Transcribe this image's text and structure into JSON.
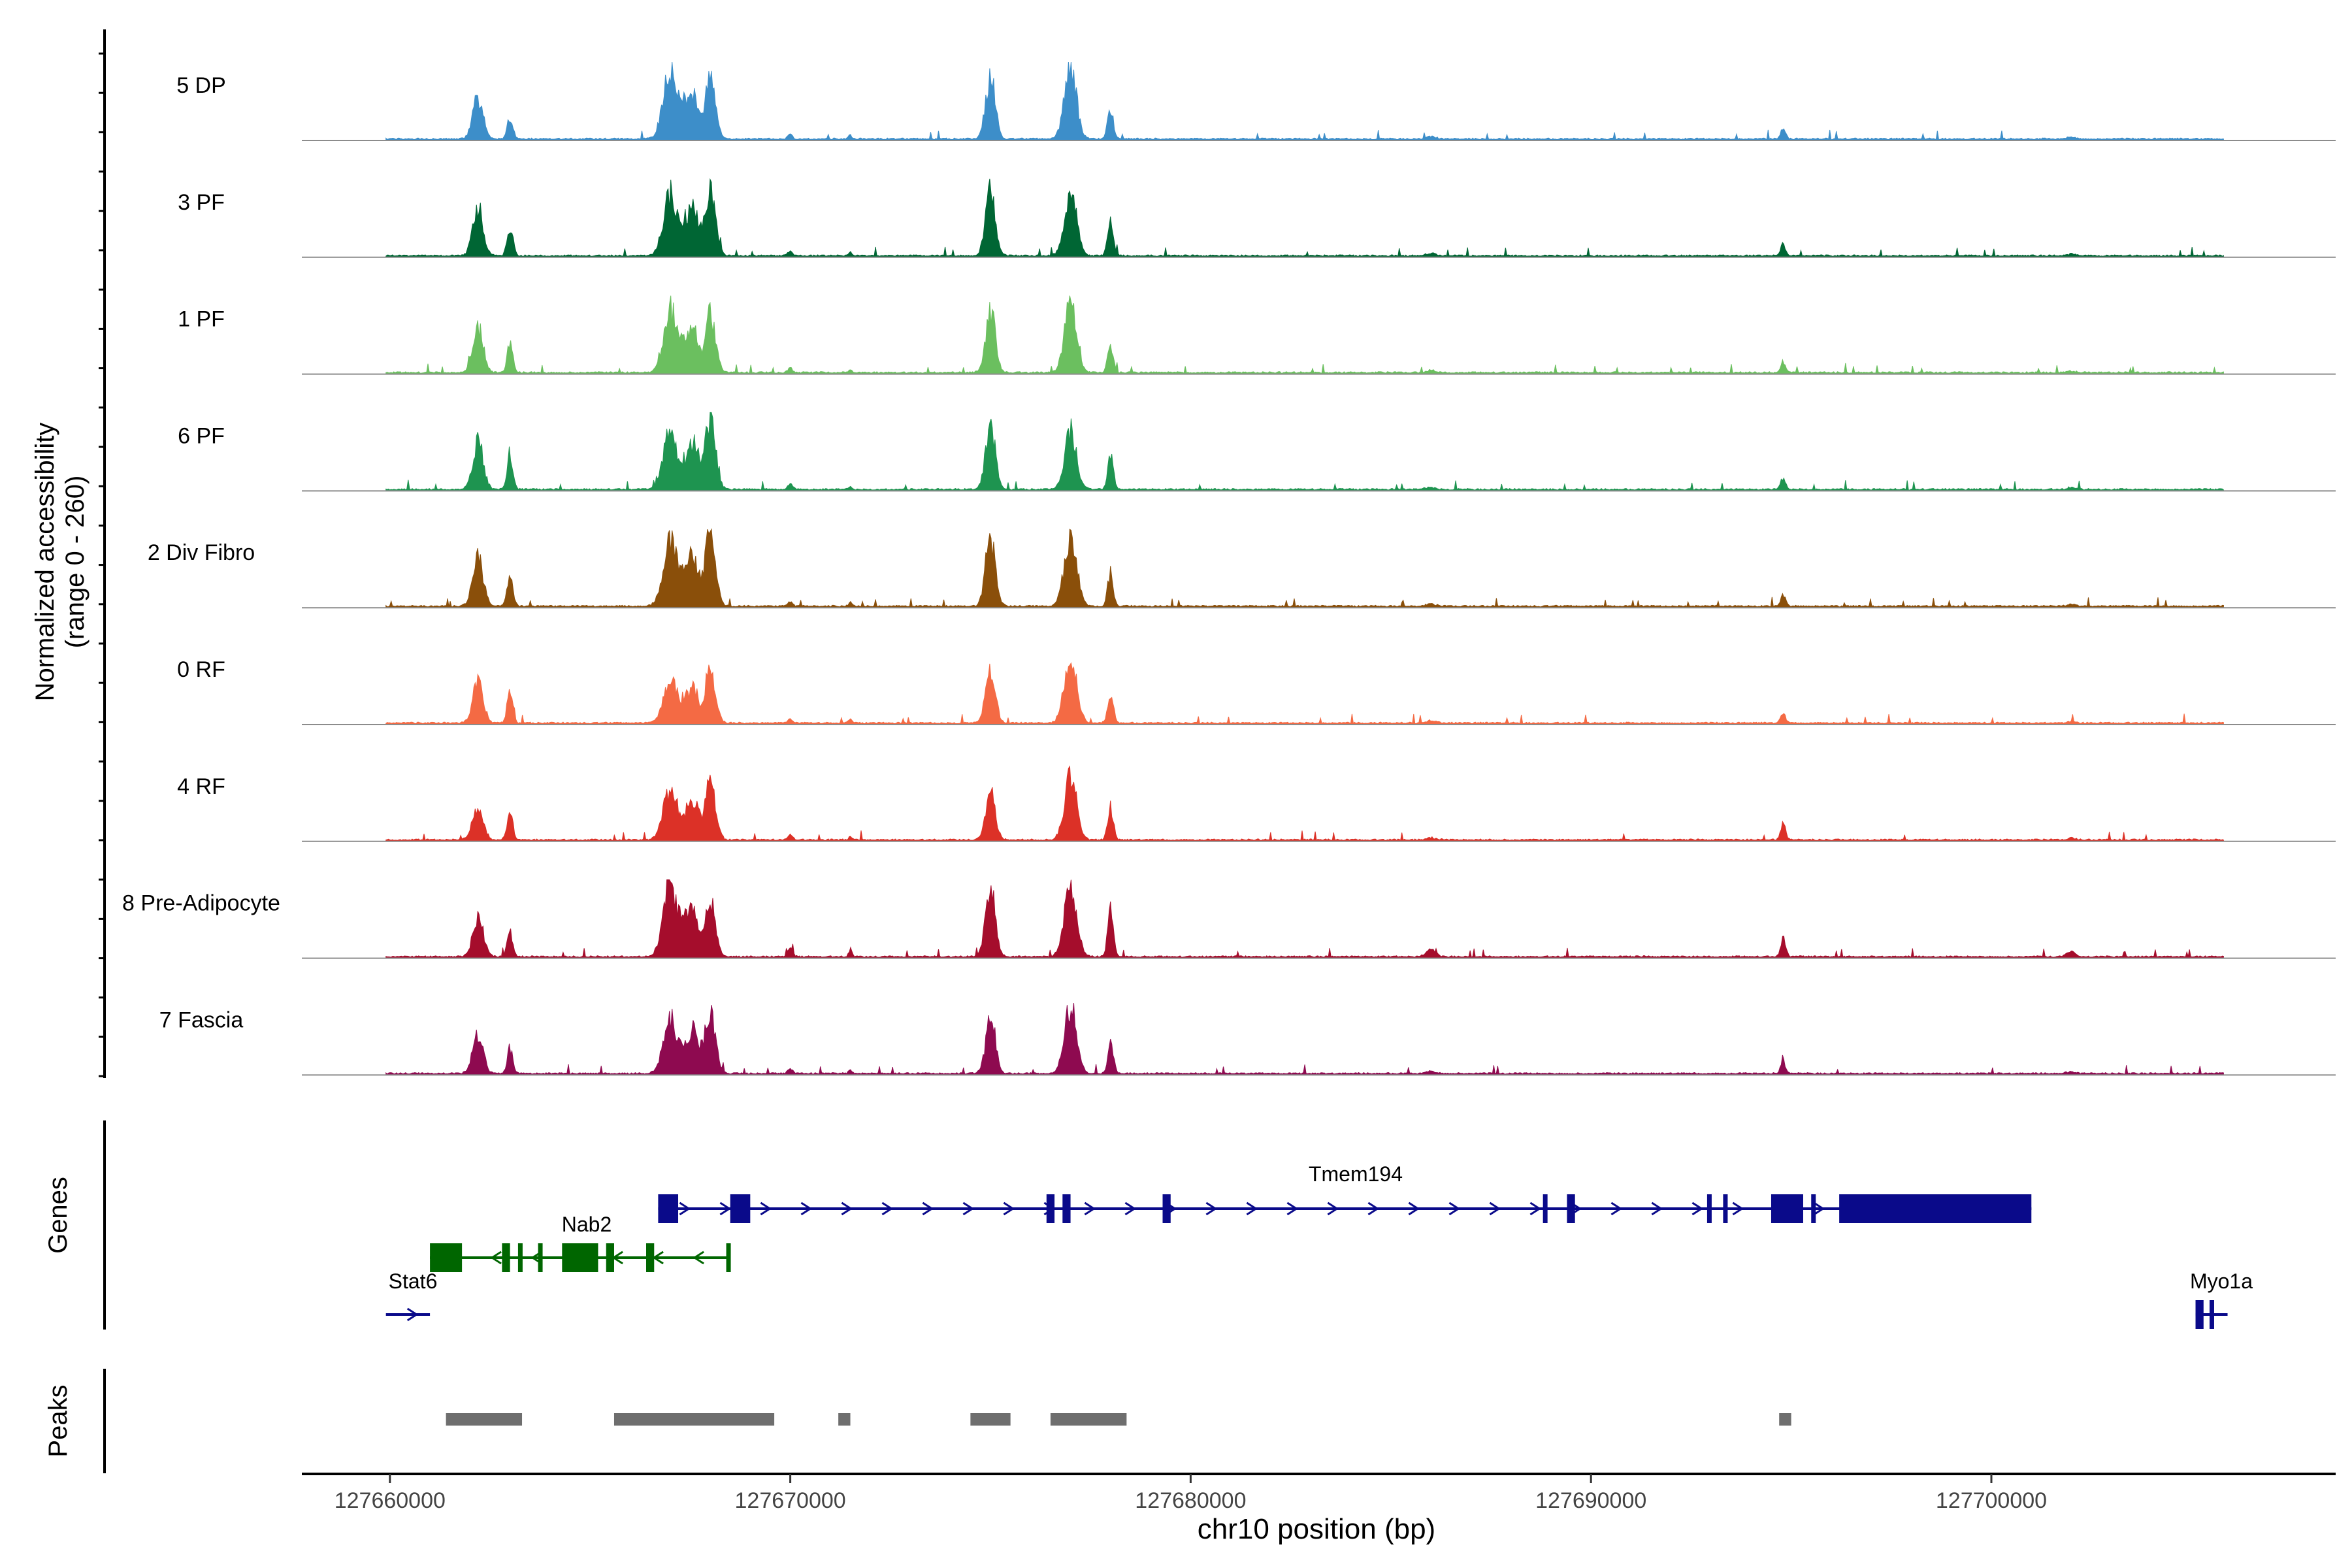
{
  "chart_data": {
    "type": "area",
    "title": "",
    "ylabel_line1": "Normalized accessibility",
    "ylabel_line2": "(range 0 - 260)",
    "y_range": [
      0,
      260
    ],
    "xlabel": "chr10 position (bp)",
    "xlim": [
      127657800,
      127708600
    ],
    "x_ticks": [
      127660000,
      127670000,
      127680000,
      127690000,
      127700000
    ],
    "x_tick_labels": [
      "127660000",
      "127670000",
      "127680000",
      "127690000",
      "127700000"
    ],
    "tracks": [
      {
        "name": "5 DP",
        "color": "#3d8ec9",
        "peak_scale": [
          0.55,
          0.3,
          0.95,
          0.8,
          0.85,
          0.95,
          0.4,
          0.1,
          0.1,
          0.15,
          0.05,
          0.05
        ]
      },
      {
        "name": "3 PF",
        "color": "#006634",
        "peak_scale": [
          0.65,
          0.4,
          0.85,
          0.95,
          0.9,
          0.85,
          0.5,
          0.1,
          0.1,
          0.15,
          0.05,
          0.05
        ]
      },
      {
        "name": "1 PF",
        "color": "#6bbf5f",
        "peak_scale": [
          0.6,
          0.4,
          0.85,
          0.8,
          0.85,
          0.95,
          0.4,
          0.1,
          0.1,
          0.15,
          0.05,
          0.05
        ]
      },
      {
        "name": "6 PF",
        "color": "#1e9450",
        "peak_scale": [
          0.65,
          0.5,
          0.75,
          0.95,
          0.85,
          0.8,
          0.45,
          0.15,
          0.1,
          0.15,
          0.05,
          0.05
        ]
      },
      {
        "name": "2 Div Fibro",
        "color": "#8a4f0a",
        "peak_scale": [
          0.65,
          0.4,
          0.9,
          1.0,
          0.95,
          1.0,
          0.45,
          0.1,
          0.1,
          0.15,
          0.05,
          0.05
        ]
      },
      {
        "name": "0 RF",
        "color": "#f46a44",
        "peak_scale": [
          0.55,
          0.45,
          0.6,
          0.7,
          0.75,
          1.0,
          0.4,
          0.1,
          0.1,
          0.15,
          0.05,
          0.05
        ]
      },
      {
        "name": "4 RF",
        "color": "#dc3127",
        "peak_scale": [
          0.45,
          0.4,
          0.7,
          0.8,
          0.65,
          0.85,
          0.45,
          0.1,
          0.1,
          0.25,
          0.05,
          0.05
        ]
      },
      {
        "name": "8 Pre-Adipocyte",
        "color": "#a50d2c",
        "peak_scale": [
          0.55,
          0.35,
          1.0,
          0.75,
          0.95,
          1.0,
          0.7,
          0.2,
          0.2,
          0.25,
          0.15,
          0.15
        ]
      },
      {
        "name": "7 Fascia",
        "color": "#8e0a50",
        "peak_scale": [
          0.5,
          0.35,
          0.75,
          0.9,
          0.75,
          0.9,
          0.4,
          0.1,
          0.1,
          0.15,
          0.05,
          0.05
        ]
      }
    ],
    "peak_loci": [
      127662200,
      127663000,
      127667000,
      127668000,
      127675000,
      127677000,
      127678000,
      127670000,
      127671500,
      127694800,
      127686000,
      127702000
    ],
    "genes_label": "Genes",
    "genes": [
      {
        "name": "Tmem194",
        "color": "#0a0a8a",
        "start": 127666700,
        "end": 127701000,
        "strand": "+",
        "exons": [
          [
            127666700,
            127667200
          ],
          [
            127668500,
            127669000
          ],
          [
            127676400,
            127676600
          ],
          [
            127676800,
            127677000
          ],
          [
            127679300,
            127679500
          ],
          [
            127688800,
            127688900
          ],
          [
            127689400,
            127689600
          ],
          [
            127692900,
            127693000
          ],
          [
            127693300,
            127693400
          ],
          [
            127694500,
            127695300
          ],
          [
            127695500,
            127695600
          ],
          [
            127696200,
            127701000
          ]
        ]
      },
      {
        "name": "Nab2",
        "color": "#006600",
        "start": 127661000,
        "end": 127668500,
        "strand": "-",
        "exons": [
          [
            127661000,
            127661800
          ],
          [
            127662800,
            127663000
          ],
          [
            127663200,
            127663300
          ],
          [
            127663700,
            127663800
          ],
          [
            127664300,
            127665200
          ],
          [
            127665400,
            127665600
          ],
          [
            127666400,
            127666600
          ],
          [
            127668400,
            127668500
          ]
        ]
      },
      {
        "name": "Stat6",
        "color": "#0a0a8a",
        "start": 127659900,
        "end": 127661000,
        "strand": "+",
        "exons": []
      },
      {
        "name": "Myo1a",
        "color": "#0a0a8a",
        "start": 127705100,
        "end": 127705900,
        "strand": "+",
        "exons": [
          [
            127705100,
            127705300
          ],
          [
            127705450,
            127705550
          ]
        ]
      }
    ],
    "peaks_label": "Peaks",
    "peaks": [
      [
        127661400,
        127663300
      ],
      [
        127665600,
        127669600
      ],
      [
        127671200,
        127671500
      ],
      [
        127674500,
        127675500
      ],
      [
        127676500,
        127678400
      ],
      [
        127694700,
        127695000
      ]
    ]
  }
}
